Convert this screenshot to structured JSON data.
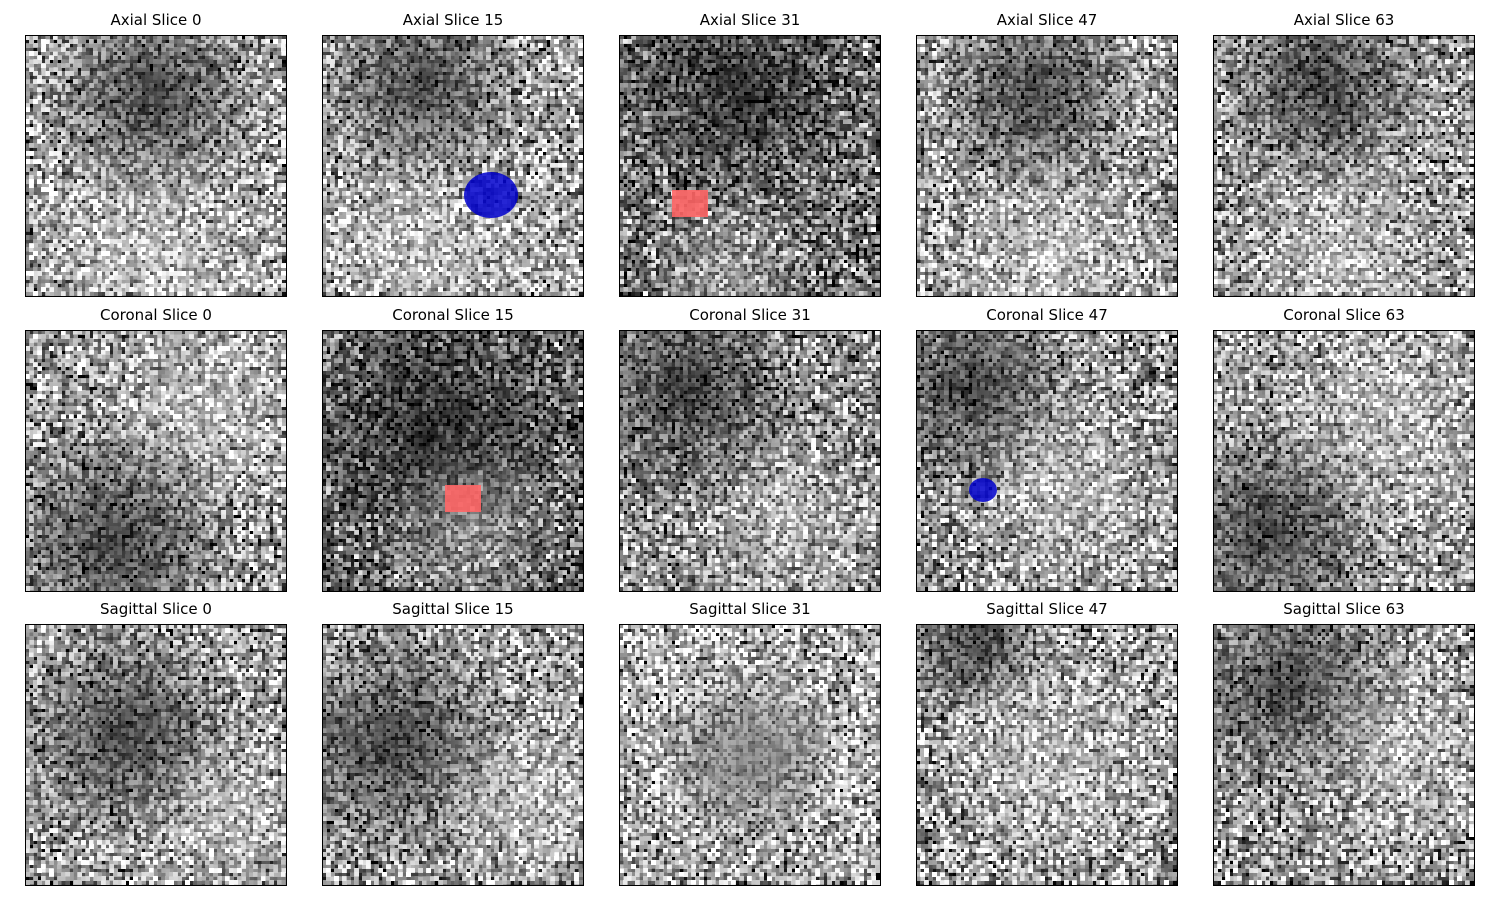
{
  "rows": [
    [
      "Axial Slice 0",
      "Axial Slice 15",
      "Axial Slice 31",
      "Axial Slice 47",
      "Axial Slice 63"
    ],
    [
      "Coronal Slice 0",
      "Coronal Slice 15",
      "Coronal Slice 31",
      "Coronal Slice 47",
      "Coronal Slice 63"
    ],
    [
      "Sagittal Slice 0",
      "Sagittal Slice 15",
      "Sagittal Slice 31",
      "Sagittal Slice 47",
      "Sagittal Slice 63"
    ]
  ]
}
